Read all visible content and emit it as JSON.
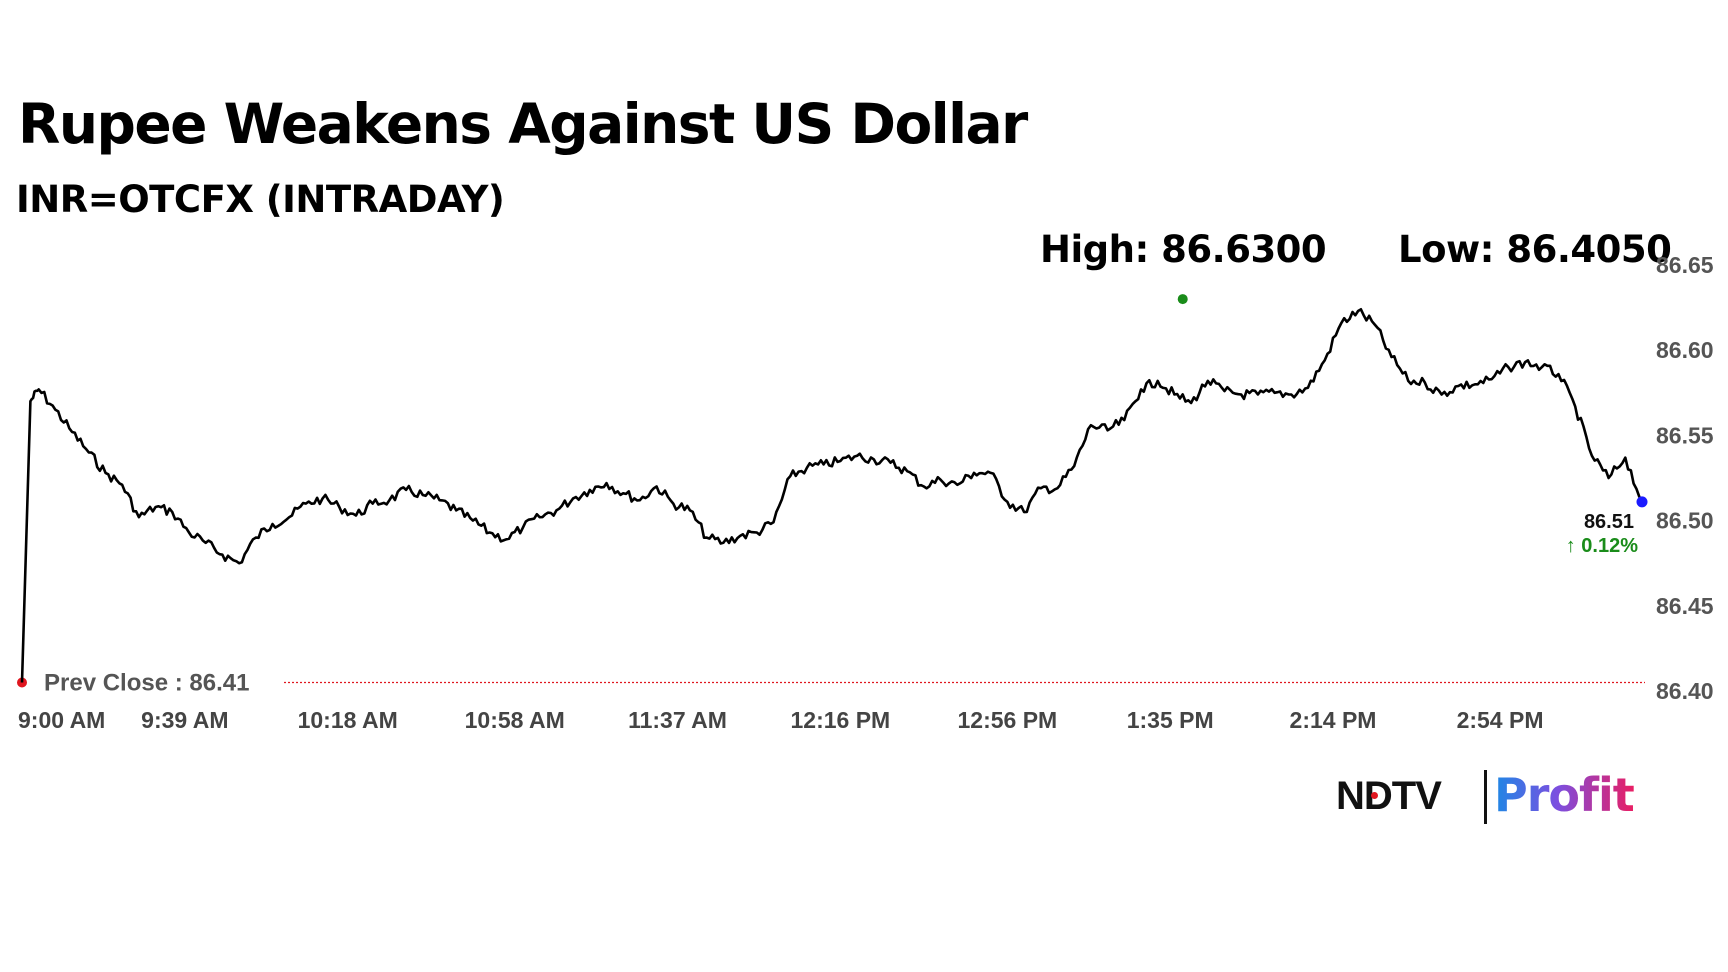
{
  "header": {
    "title": "Rupee Weakens Against US Dollar",
    "subtitle": "INR=OTCFX (INTRADAY)"
  },
  "stats": {
    "high_label": "High: 86.6300",
    "low_label": "Low: 86.4050"
  },
  "brand": {
    "ndtv": "NDTV",
    "profit": "Profit"
  },
  "chart_data": {
    "type": "line",
    "x_tick_labels": [
      "9:00 AM",
      "9:39 AM",
      "10:18 AM",
      "10:58 AM",
      "11:37 AM",
      "12:16 PM",
      "12:56 PM",
      "1:35 PM",
      "2:14 PM",
      "2:54 PM"
    ],
    "y_tick_labels": [
      "86.65",
      "86.60",
      "86.55",
      "86.50",
      "86.45",
      "86.40"
    ],
    "ylim": [
      86.4,
      86.65
    ],
    "grid": false,
    "prev_close": {
      "label": "Prev Close : 86.41",
      "value": 86.405
    },
    "high": 86.63,
    "low": 86.405,
    "last": {
      "label": "86.51",
      "change_label": "↑ 0.12%",
      "value": 86.511
    },
    "colors": {
      "line": "#000000",
      "prev_close": "#e0161f",
      "high": "#1a8c1a",
      "last": "#1a1aff",
      "change": "#1a8c1a",
      "axis_text": "#555555"
    },
    "series": [
      {
        "x": [
          "9:00 AM",
          "9:02 AM",
          "9:04 AM",
          "9:08 AM",
          "9:12 AM",
          "9:16 AM",
          "9:20 AM",
          "9:24 AM",
          "9:28 AM",
          "9:32 AM",
          "9:36 AM",
          "9:40 AM",
          "9:44 AM",
          "9:48 AM",
          "9:52 AM",
          "9:56 AM",
          "10:00 AM",
          "10:04 AM",
          "10:08 AM",
          "10:12 AM",
          "10:16 AM",
          "10:20 AM",
          "10:24 AM",
          "10:28 AM",
          "10:32 AM",
          "10:36 AM",
          "10:40 AM",
          "10:44 AM",
          "10:48 AM",
          "10:52 AM",
          "10:56 AM",
          "11:00 AM",
          "11:04 AM",
          "11:08 AM",
          "11:12 AM",
          "11:16 AM",
          "11:20 AM",
          "11:24 AM",
          "11:28 AM",
          "11:32 AM",
          "11:36 AM",
          "11:40 AM",
          "11:44 AM",
          "11:48 AM",
          "11:52 AM",
          "11:56 AM",
          "12:00 PM",
          "12:04 PM",
          "12:08 PM",
          "12:12 PM",
          "12:16 PM",
          "12:20 PM",
          "12:24 PM",
          "12:28 PM",
          "12:32 PM",
          "12:36 PM",
          "12:40 PM",
          "12:44 PM",
          "12:48 PM",
          "12:52 PM",
          "12:56 PM",
          "1:00 PM",
          "1:04 PM",
          "1:08 PM",
          "1:12 PM",
          "1:16 PM",
          "1:20 PM",
          "1:24 PM",
          "1:28 PM",
          "1:32 PM",
          "1:36 PM",
          "1:40 PM",
          "1:44 PM",
          "1:48 PM",
          "1:52 PM",
          "1:56 PM",
          "2:00 PM",
          "2:04 PM",
          "2:08 PM",
          "2:12 PM",
          "2:16 PM",
          "2:20 PM",
          "2:24 PM",
          "2:28 PM",
          "2:32 PM",
          "2:36 PM",
          "2:40 PM",
          "2:44 PM",
          "2:48 PM",
          "2:52 PM",
          "2:56 PM",
          "3:00 PM",
          "3:04 PM",
          "3:08 PM",
          "3:12 PM",
          "3:16 PM",
          "3:20 PM",
          "3:24 PM",
          "3:28 PM"
        ],
        "values": [
          86.405,
          86.57,
          86.577,
          86.565,
          86.552,
          86.54,
          86.528,
          86.521,
          86.502,
          86.508,
          86.505,
          86.493,
          86.487,
          86.48,
          86.475,
          86.49,
          86.498,
          86.502,
          86.51,
          86.513,
          86.508,
          86.503,
          86.51,
          86.512,
          86.518,
          86.515,
          86.512,
          86.506,
          86.5,
          86.493,
          86.489,
          86.496,
          86.502,
          86.506,
          86.513,
          86.518,
          86.522,
          86.516,
          86.512,
          86.52,
          86.51,
          86.506,
          86.49,
          86.487,
          86.491,
          86.493,
          86.499,
          86.526,
          86.531,
          86.533,
          86.535,
          86.538,
          86.536,
          86.534,
          86.529,
          86.52,
          86.524,
          86.521,
          86.528,
          86.528,
          86.511,
          86.505,
          86.519,
          86.519,
          86.532,
          86.556,
          86.553,
          86.559,
          86.577,
          86.582,
          86.574,
          86.569,
          86.582,
          86.576,
          86.574,
          86.574,
          86.575,
          86.574,
          86.578,
          86.594,
          86.616,
          86.623,
          86.615,
          86.596,
          86.582,
          86.581,
          86.574,
          86.579,
          86.58,
          86.583,
          86.59,
          86.593,
          86.59,
          86.586,
          86.567,
          86.538,
          86.525,
          86.537,
          86.511
        ]
      }
    ]
  }
}
